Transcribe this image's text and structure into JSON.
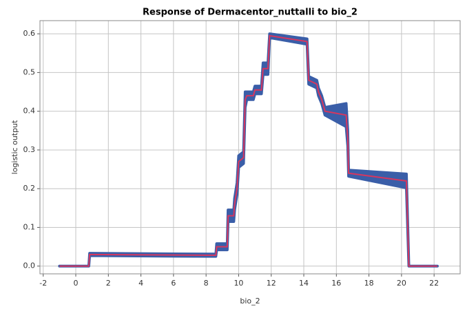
{
  "chart_data": {
    "type": "line",
    "title": "Response of Dermacentor_nuttalli to bio_2",
    "x_label": "bio_2",
    "y_label": "logistic output",
    "x": [
      -1,
      0.8,
      0.85,
      8.6,
      8.65,
      9.3,
      9.35,
      9.7,
      9.75,
      9.9,
      10,
      10.3,
      10.4,
      10.5,
      10.9,
      11,
      11.4,
      11.5,
      11.8,
      11.9,
      14.2,
      14.3,
      14.8,
      14.9,
      15.1,
      15.3,
      16.6,
      16.7,
      16.75,
      20.3,
      20.45,
      22.2
    ],
    "series": [
      {
        "color": "#d6375f",
        "values": [
          0,
          0,
          0.03,
          0.028,
          0.05,
          0.05,
          0.13,
          0.13,
          0.16,
          0.2,
          0.27,
          0.28,
          0.43,
          0.44,
          0.44,
          0.455,
          0.455,
          0.51,
          0.51,
          0.595,
          0.58,
          0.48,
          0.47,
          0.45,
          0.43,
          0.4,
          0.39,
          0.33,
          0.24,
          0.22,
          0,
          0
        ],
        "band_color": "#3a5ea8",
        "upper": [
          0,
          0,
          0.033,
          0.031,
          0.058,
          0.058,
          0.145,
          0.145,
          0.175,
          0.215,
          0.285,
          0.295,
          0.45,
          0.45,
          0.45,
          0.465,
          0.465,
          0.525,
          0.525,
          0.6,
          0.587,
          0.49,
          0.48,
          0.46,
          0.44,
          0.41,
          0.42,
          0.35,
          0.248,
          0.238,
          0,
          0
        ],
        "lower": [
          0,
          0,
          0.027,
          0.025,
          0.042,
          0.042,
          0.115,
          0.115,
          0.145,
          0.185,
          0.255,
          0.265,
          0.41,
          0.43,
          0.43,
          0.445,
          0.445,
          0.495,
          0.495,
          0.59,
          0.573,
          0.47,
          0.46,
          0.44,
          0.42,
          0.39,
          0.36,
          0.31,
          0.232,
          0.202,
          0,
          0
        ]
      }
    ],
    "xlim": [
      -2.2,
      23.6
    ],
    "ylim": [
      -0.02,
      0.634
    ],
    "xticks": [
      -2,
      0,
      2,
      4,
      6,
      8,
      10,
      12,
      14,
      16,
      18,
      20,
      22
    ],
    "yticks": [
      {
        "value": 0,
        "label": "0.0"
      },
      0.1,
      0.2,
      0.3,
      0.4,
      0.5,
      0.6
    ],
    "grid": true
  }
}
